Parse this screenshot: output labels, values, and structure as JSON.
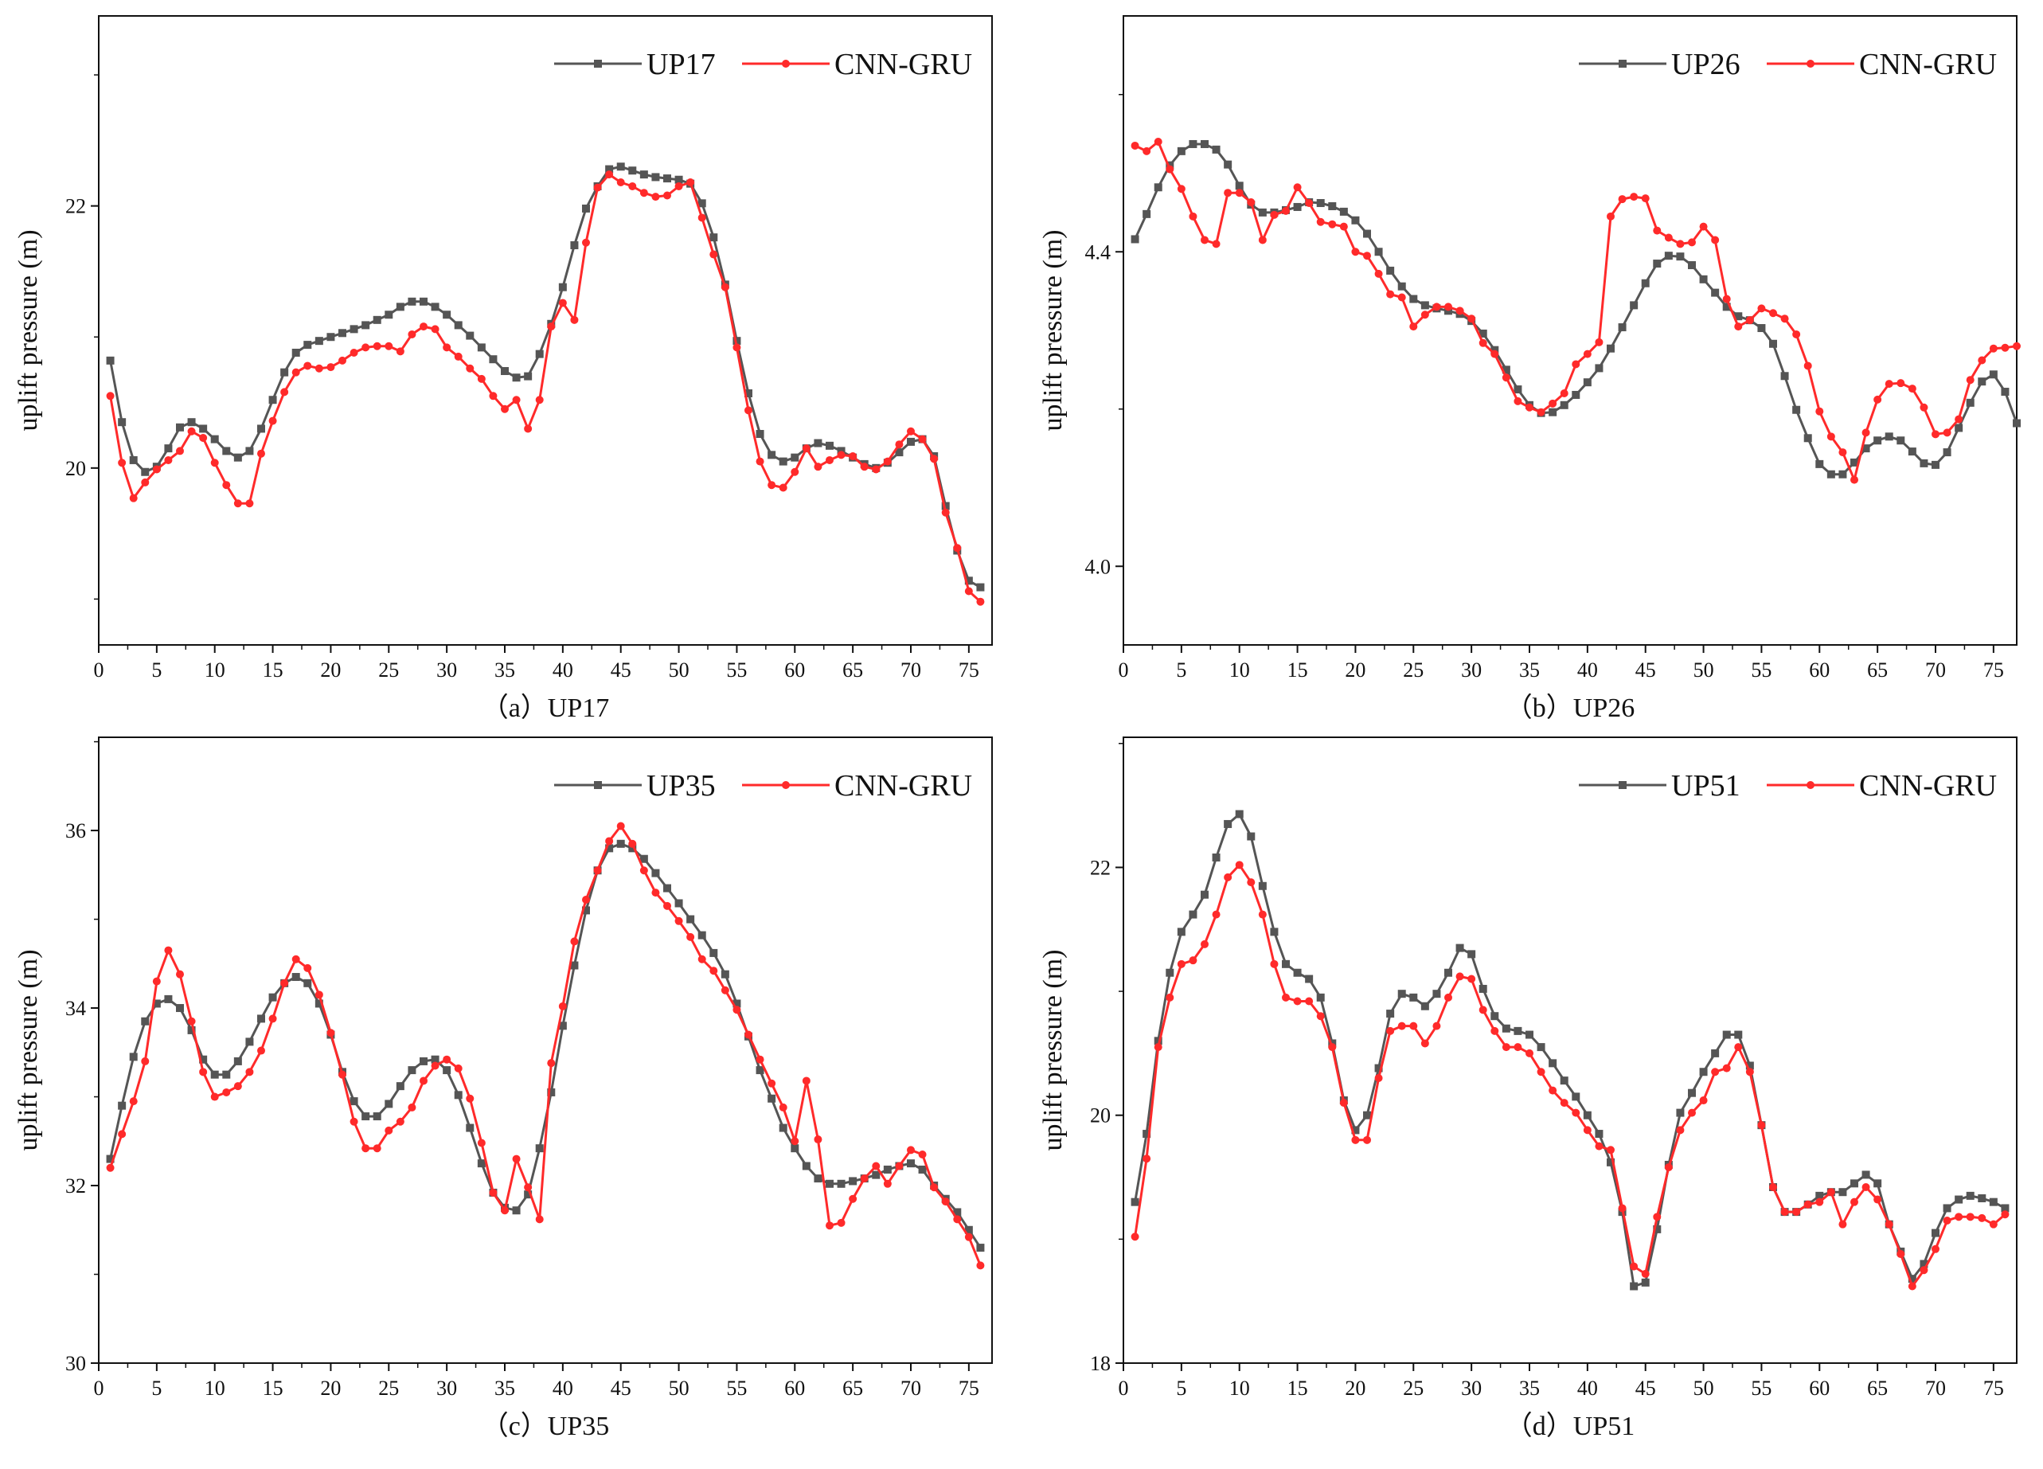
{
  "figure": {
    "colors": {
      "observed": "#555555",
      "predicted": "#ff2a2a",
      "axis": "#111111"
    }
  },
  "chart_data": [
    {
      "type": "line",
      "caption": "（a）UP17",
      "ylabel": "uplift pressure (m)",
      "xlabel": "",
      "xlim": [
        0,
        77
      ],
      "ylim": [
        18.65,
        23.45
      ],
      "xticks": [
        0,
        5,
        10,
        15,
        20,
        25,
        30,
        35,
        40,
        45,
        50,
        55,
        60,
        65,
        70,
        75
      ],
      "yticks": [
        20,
        22
      ],
      "ytick_labels": [
        "20",
        "22"
      ],
      "legend": [
        "UP17",
        "CNN-GRU"
      ],
      "legend_position": "top-right",
      "series": [
        {
          "name": "UP17",
          "values": [
            20.82,
            20.35,
            20.06,
            19.97,
            20.01,
            20.15,
            20.31,
            20.35,
            20.3,
            20.22,
            20.13,
            20.08,
            20.13,
            20.3,
            20.52,
            20.73,
            20.88,
            20.94,
            20.97,
            21.0,
            21.03,
            21.06,
            21.09,
            21.13,
            21.17,
            21.23,
            21.27,
            21.27,
            21.23,
            21.17,
            21.09,
            21.01,
            20.92,
            20.83,
            20.74,
            20.69,
            20.7,
            20.87,
            21.1,
            21.38,
            21.7,
            21.98,
            22.15,
            22.28,
            22.3,
            22.27,
            22.24,
            22.22,
            22.21,
            22.2,
            22.17,
            22.02,
            21.76,
            21.4,
            20.97,
            20.57,
            20.26,
            20.1,
            20.05,
            20.08,
            20.15,
            20.19,
            20.17,
            20.13,
            20.08,
            20.03,
            20.0,
            20.04,
            20.12,
            20.2,
            20.22,
            20.09,
            19.71,
            19.37,
            19.14,
            19.09
          ]
        },
        {
          "name": "CNN-GRU",
          "values": [
            20.55,
            20.04,
            19.77,
            19.89,
            19.99,
            20.06,
            20.13,
            20.28,
            20.23,
            20.04,
            19.87,
            19.73,
            19.73,
            20.11,
            20.36,
            20.58,
            20.73,
            20.78,
            20.76,
            20.77,
            20.82,
            20.88,
            20.92,
            20.93,
            20.93,
            20.89,
            21.02,
            21.08,
            21.06,
            20.92,
            20.85,
            20.76,
            20.68,
            20.55,
            20.45,
            20.52,
            20.3,
            20.52,
            21.08,
            21.26,
            21.13,
            21.72,
            22.14,
            22.24,
            22.18,
            22.15,
            22.1,
            22.07,
            22.08,
            22.15,
            22.18,
            21.91,
            21.63,
            21.38,
            20.92,
            20.44,
            20.05,
            19.87,
            19.85,
            19.97,
            20.15,
            20.01,
            20.06,
            20.1,
            20.09,
            20.01,
            19.99,
            20.05,
            20.18,
            20.28,
            20.22,
            20.07,
            19.66,
            19.39,
            19.06,
            18.98
          ]
        }
      ]
    },
    {
      "type": "line",
      "caption": "（b）UP26",
      "ylabel": "uplift pressure (m)",
      "xlabel": "",
      "xlim": [
        0,
        77
      ],
      "ylim": [
        3.9,
        4.7
      ],
      "xticks": [
        0,
        5,
        10,
        15,
        20,
        25,
        30,
        35,
        40,
        45,
        50,
        55,
        60,
        65,
        70,
        75
      ],
      "yticks": [
        4.0,
        4.4
      ],
      "ytick_labels": [
        "4.0",
        "4.4"
      ],
      "legend": [
        "UP26",
        "CNN-GRU"
      ],
      "legend_position": "top-right",
      "series": [
        {
          "name": "UP26",
          "values": [
            4.416,
            4.448,
            4.482,
            4.51,
            4.528,
            4.537,
            4.537,
            4.53,
            4.511,
            4.484,
            4.46,
            4.45,
            4.45,
            4.453,
            4.457,
            4.463,
            4.462,
            4.458,
            4.451,
            4.44,
            4.423,
            4.4,
            4.376,
            4.356,
            4.34,
            4.332,
            4.328,
            4.325,
            4.321,
            4.312,
            4.296,
            4.275,
            4.25,
            4.225,
            4.205,
            4.195,
            4.196,
            4.205,
            4.218,
            4.234,
            4.252,
            4.277,
            4.304,
            4.332,
            4.36,
            4.385,
            4.395,
            4.394,
            4.383,
            4.365,
            4.348,
            4.33,
            4.318,
            4.313,
            4.303,
            4.283,
            4.242,
            4.199,
            4.163,
            4.13,
            4.117,
            4.117,
            4.132,
            4.15,
            4.16,
            4.165,
            4.16,
            4.146,
            4.131,
            4.129,
            4.145,
            4.176,
            4.208,
            4.235,
            4.244,
            4.222,
            4.182
          ]
        },
        {
          "name": "CNN-GRU",
          "values": [
            4.535,
            4.528,
            4.54,
            4.505,
            4.48,
            4.445,
            4.415,
            4.41,
            4.475,
            4.475,
            4.463,
            4.415,
            4.447,
            4.452,
            4.482,
            4.462,
            4.438,
            4.435,
            4.432,
            4.4,
            4.395,
            4.372,
            4.346,
            4.342,
            4.305,
            4.32,
            4.33,
            4.33,
            4.325,
            4.315,
            4.284,
            4.27,
            4.24,
            4.21,
            4.202,
            4.196,
            4.207,
            4.22,
            4.257,
            4.27,
            4.285,
            4.445,
            4.467,
            4.47,
            4.468,
            4.427,
            4.418,
            4.41,
            4.412,
            4.432,
            4.415,
            4.34,
            4.305,
            4.313,
            4.328,
            4.322,
            4.315,
            4.295,
            4.255,
            4.197,
            4.165,
            4.145,
            4.11,
            4.17,
            4.212,
            4.232,
            4.233,
            4.226,
            4.202,
            4.168,
            4.17,
            4.187,
            4.237,
            4.262,
            4.277,
            4.278,
            4.28
          ]
        }
      ]
    },
    {
      "type": "line",
      "caption": "（c）UP35",
      "ylabel": "uplift pressure (m)",
      "xlabel": "",
      "xlim": [
        0,
        77
      ],
      "ylim": [
        30,
        37.05
      ],
      "xticks": [
        0,
        5,
        10,
        15,
        20,
        25,
        30,
        35,
        40,
        45,
        50,
        55,
        60,
        65,
        70,
        75
      ],
      "yticks": [
        30,
        32,
        34,
        36
      ],
      "ytick_labels": [
        "30",
        "32",
        "34",
        "36"
      ],
      "legend": [
        "UP35",
        "CNN-GRU"
      ],
      "legend_position": "top-right",
      "series": [
        {
          "name": "UP35",
          "values": [
            32.3,
            32.9,
            33.45,
            33.85,
            34.05,
            34.1,
            34.0,
            33.75,
            33.42,
            33.25,
            33.25,
            33.4,
            33.62,
            33.88,
            34.12,
            34.28,
            34.35,
            34.28,
            34.05,
            33.7,
            33.28,
            32.95,
            32.78,
            32.78,
            32.92,
            33.12,
            33.3,
            33.4,
            33.42,
            33.3,
            33.02,
            32.65,
            32.25,
            31.92,
            31.75,
            31.72,
            31.9,
            32.42,
            33.05,
            33.8,
            34.48,
            35.1,
            35.55,
            35.8,
            35.85,
            35.8,
            35.68,
            35.52,
            35.35,
            35.18,
            35.0,
            34.82,
            34.62,
            34.38,
            34.05,
            33.68,
            33.3,
            32.98,
            32.65,
            32.42,
            32.22,
            32.08,
            32.02,
            32.02,
            32.05,
            32.08,
            32.12,
            32.18,
            32.22,
            32.25,
            32.18,
            32.0,
            31.85,
            31.7,
            31.5,
            31.3
          ]
        },
        {
          "name": "CNN-GRU",
          "values": [
            32.2,
            32.58,
            32.95,
            33.4,
            34.3,
            34.65,
            34.38,
            33.85,
            33.28,
            33.0,
            33.05,
            33.12,
            33.28,
            33.52,
            33.88,
            34.28,
            34.55,
            34.45,
            34.15,
            33.72,
            33.25,
            32.72,
            32.42,
            32.42,
            32.62,
            32.72,
            32.88,
            33.18,
            33.35,
            33.42,
            33.32,
            32.98,
            32.48,
            31.92,
            31.72,
            32.3,
            31.98,
            31.62,
            33.38,
            34.02,
            34.75,
            35.22,
            35.55,
            35.88,
            36.05,
            35.85,
            35.55,
            35.3,
            35.15,
            34.98,
            34.8,
            34.55,
            34.42,
            34.2,
            33.98,
            33.7,
            33.42,
            33.15,
            32.88,
            32.5,
            33.18,
            32.52,
            31.55,
            31.58,
            31.85,
            32.08,
            32.22,
            32.02,
            32.22,
            32.4,
            32.35,
            31.98,
            31.82,
            31.62,
            31.42,
            31.1
          ]
        }
      ]
    },
    {
      "type": "line",
      "caption": "（d）UP51",
      "ylabel": "uplift pressure (m)",
      "xlabel": "",
      "xlim": [
        0,
        77
      ],
      "ylim": [
        18,
        23.05
      ],
      "xticks": [
        0,
        5,
        10,
        15,
        20,
        25,
        30,
        35,
        40,
        45,
        50,
        55,
        60,
        65,
        70,
        75
      ],
      "yticks": [
        18,
        20,
        22
      ],
      "ytick_labels": [
        "18",
        "20",
        "22"
      ],
      "legend": [
        "UP51",
        "CNN-GRU"
      ],
      "legend_position": "top-right",
      "series": [
        {
          "name": "UP51",
          "values": [
            19.3,
            19.85,
            20.6,
            21.15,
            21.48,
            21.62,
            21.78,
            22.08,
            22.35,
            22.43,
            22.25,
            21.85,
            21.48,
            21.22,
            21.15,
            21.1,
            20.95,
            20.58,
            20.12,
            19.88,
            20.0,
            20.38,
            20.82,
            20.98,
            20.95,
            20.88,
            20.98,
            21.15,
            21.35,
            21.3,
            21.02,
            20.8,
            20.7,
            20.68,
            20.65,
            20.55,
            20.42,
            20.28,
            20.15,
            20.0,
            19.85,
            19.62,
            19.22,
            18.62,
            18.65,
            19.08,
            19.6,
            20.02,
            20.18,
            20.35,
            20.5,
            20.65,
            20.65,
            20.4,
            19.92,
            19.42,
            19.22,
            19.22,
            19.28,
            19.35,
            19.38,
            19.38,
            19.45,
            19.52,
            19.45,
            19.12,
            18.9,
            18.68,
            18.8,
            19.05,
            19.25,
            19.32,
            19.35,
            19.33,
            19.3,
            19.25
          ]
        },
        {
          "name": "CNN-GRU",
          "values": [
            19.02,
            19.65,
            20.55,
            20.95,
            21.22,
            21.25,
            21.38,
            21.62,
            21.92,
            22.02,
            21.88,
            21.62,
            21.22,
            20.95,
            20.92,
            20.92,
            20.8,
            20.55,
            20.1,
            19.8,
            19.8,
            20.3,
            20.68,
            20.72,
            20.72,
            20.58,
            20.72,
            20.95,
            21.12,
            21.1,
            20.85,
            20.68,
            20.55,
            20.55,
            20.5,
            20.35,
            20.2,
            20.1,
            20.02,
            19.88,
            19.75,
            19.72,
            19.25,
            18.78,
            18.72,
            19.18,
            19.58,
            19.88,
            20.02,
            20.12,
            20.35,
            20.38,
            20.55,
            20.35,
            19.92,
            19.42,
            19.22,
            19.22,
            19.28,
            19.3,
            19.38,
            19.12,
            19.3,
            19.42,
            19.32,
            19.12,
            18.88,
            18.62,
            18.75,
            18.92,
            19.15,
            19.18,
            19.18,
            19.17,
            19.12,
            19.2
          ]
        }
      ]
    }
  ]
}
